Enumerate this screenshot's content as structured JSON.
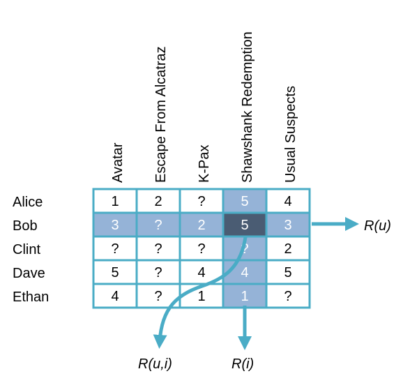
{
  "movies": [
    "Avatar",
    "Escape From Alcatraz",
    "K-Pax",
    "Shawshank Redemption",
    "Usual Suspects"
  ],
  "users": [
    "Alice",
    "Bob",
    "Clint",
    "Dave",
    "Ethan"
  ],
  "ratings": [
    [
      "1",
      "2",
      "?",
      "5",
      "4"
    ],
    [
      "3",
      "?",
      "2",
      "5",
      "3"
    ],
    [
      "?",
      "?",
      "?",
      "?",
      "2"
    ],
    [
      "5",
      "?",
      "4",
      "4",
      "5"
    ],
    [
      "4",
      "?",
      "1",
      "1",
      "?"
    ]
  ],
  "highlight": {
    "user_row": 1,
    "item_col": 3
  },
  "labels": {
    "user_profile": "R(u)",
    "item_profile": "R(i)",
    "rating": "R(u,i)"
  },
  "colors": {
    "grid": "#4aacc6",
    "highlight": "#95b3d7",
    "target": "#4a5c73",
    "arrow": "#4aacc6"
  }
}
